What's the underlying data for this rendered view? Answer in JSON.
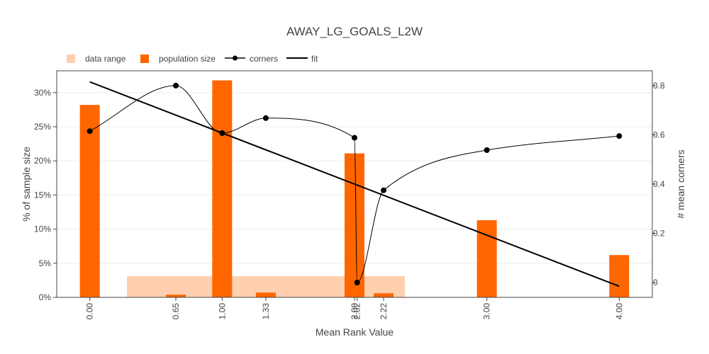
{
  "chart_data": {
    "title": "AWAY_LG_GOALS_L2W",
    "xlabel": "Mean Rank Value",
    "ylabel_left": "% of sample size",
    "ylabel_right": "# mean corners",
    "x_tick_labels": [
      "0.00",
      "0.65",
      "1.00",
      "1.33",
      "2.00",
      "2.02",
      "2.22",
      "3.00",
      "4.00"
    ],
    "x_tick_values": [
      0.0,
      0.65,
      1.0,
      1.33,
      2.0,
      2.02,
      2.22,
      3.0,
      4.0
    ],
    "x_range": [
      -0.25,
      4.25
    ],
    "y_left_ticks": [
      "0%",
      "5%",
      "10%",
      "15%",
      "20%",
      "25%",
      "30%"
    ],
    "y_left_tick_values": [
      0,
      5,
      10,
      15,
      20,
      25,
      30
    ],
    "y_left_range": [
      0,
      33.2
    ],
    "y_right_ticks": [
      "0",
      "0.2",
      "0.4",
      "0.6",
      "0.8"
    ],
    "y_right_tick_values": [
      0,
      0.2,
      0.4,
      0.6,
      0.8
    ],
    "y_right_range": [
      -0.06,
      0.86
    ],
    "legend": {
      "placement": "top-left",
      "items": [
        {
          "label": "data range",
          "type": "square",
          "color": "#ffcfb0"
        },
        {
          "label": "population size",
          "type": "square",
          "color": "#ff6600"
        },
        {
          "label": "corners",
          "type": "line-marker",
          "color": "#000000"
        },
        {
          "label": "fit",
          "type": "line",
          "color": "#000000"
        }
      ]
    },
    "data_range": [
      {
        "x0": 0.28,
        "x1": 0.97,
        "value": 3.1
      },
      {
        "x0": 1.03,
        "x1": 1.97,
        "value": 3.1
      },
      {
        "x0": 2.07,
        "x1": 2.38,
        "value": 3.1
      }
    ],
    "population_size": {
      "x": [
        0.0,
        0.65,
        1.0,
        1.33,
        2.0,
        2.22,
        3.0,
        4.0
      ],
      "values": [
        28.2,
        0.4,
        31.8,
        0.7,
        21.1,
        0.6,
        11.3,
        6.2
      ],
      "color": "#ff6600"
    },
    "corners": {
      "x": [
        0.0,
        0.65,
        1.0,
        1.33,
        2.0,
        2.02,
        2.22,
        3.0,
        4.0
      ],
      "y": [
        0.615,
        0.8,
        0.607,
        0.668,
        0.588,
        0.0,
        0.375,
        0.538,
        0.595
      ]
    },
    "fit": {
      "x": [
        0.0,
        4.0
      ],
      "y": [
        0.815,
        -0.015
      ]
    },
    "colors": {
      "range": "#ffcfb0",
      "population": "#ff6600",
      "line": "#000000",
      "grid": "#eeeeee"
    }
  }
}
